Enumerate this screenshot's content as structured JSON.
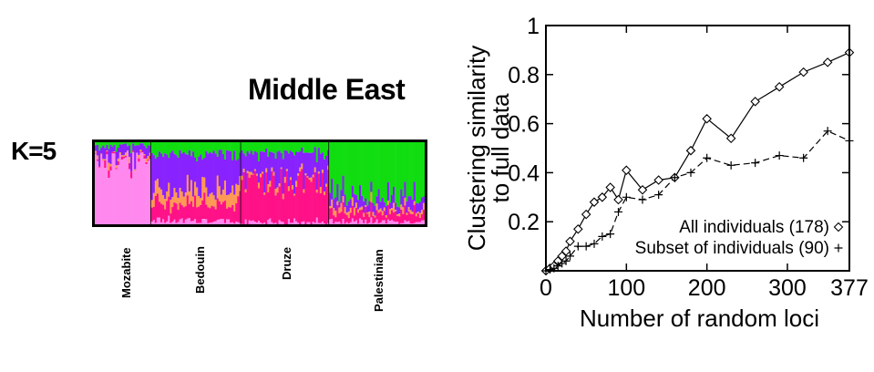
{
  "structure_panel": {
    "k_label": "K=5",
    "region": "Middle East",
    "populations": [
      "Mozabite",
      "Bedouin",
      "Druze",
      "Palestinian"
    ],
    "cluster_colors": [
      "#ff88ee",
      "#ff9955",
      "#8822ff",
      "#ff1188",
      "#11dd11"
    ]
  },
  "chart_data": {
    "type": "line",
    "xlabel": "Number of random loci",
    "ylabel": [
      "Clustering similarity",
      "to full data"
    ],
    "xlim": [
      0,
      377
    ],
    "ylim": [
      0,
      1
    ],
    "xticks": [
      0,
      100,
      200,
      300,
      377
    ],
    "yticks": [
      0.2,
      0.4,
      0.6,
      0.8,
      1
    ],
    "ytick_labels": [
      "0.2",
      "0.4",
      "0.6",
      "0.8",
      "1"
    ],
    "legend_placement": "bottom-right",
    "series": [
      {
        "name": "All individuals (178)",
        "marker": "diamond",
        "line": "solid",
        "x": [
          0,
          5,
          10,
          15,
          20,
          25,
          30,
          40,
          50,
          60,
          70,
          80,
          90,
          100,
          120,
          140,
          160,
          180,
          200,
          230,
          260,
          290,
          320,
          350,
          377
        ],
        "y": [
          0,
          0.01,
          0.02,
          0.04,
          0.06,
          0.08,
          0.12,
          0.17,
          0.23,
          0.28,
          0.3,
          0.34,
          0.29,
          0.41,
          0.33,
          0.37,
          0.38,
          0.49,
          0.62,
          0.54,
          0.69,
          0.75,
          0.81,
          0.85,
          0.89
        ]
      },
      {
        "name": "Subset of individuals (90)",
        "marker": "plus",
        "line": "dashed",
        "x": [
          0,
          5,
          10,
          15,
          20,
          25,
          30,
          40,
          50,
          60,
          70,
          80,
          90,
          100,
          120,
          140,
          160,
          180,
          200,
          230,
          260,
          290,
          320,
          350,
          377
        ],
        "y": [
          0,
          0.005,
          0.01,
          0.02,
          0.03,
          0.04,
          0.06,
          0.1,
          0.1,
          0.11,
          0.14,
          0.15,
          0.24,
          0.3,
          0.29,
          0.31,
          0.38,
          0.4,
          0.46,
          0.43,
          0.44,
          0.47,
          0.46,
          0.57,
          0.53
        ]
      }
    ]
  }
}
